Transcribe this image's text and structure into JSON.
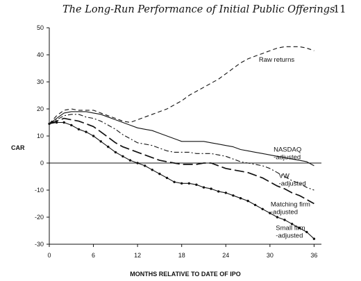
{
  "header": {
    "running_title": "The Long-Run Performance of Initial Public Offerings",
    "page_number": "11"
  },
  "chart_data": {
    "type": "line",
    "xlabel": "MONTHS RELATIVE TO DATE OF IPO",
    "ylabel": "CAR",
    "xlim": [
      0,
      37
    ],
    "ylim": [
      -30,
      50
    ],
    "x_ticks": [
      0,
      6,
      12,
      18,
      24,
      30,
      36
    ],
    "y_ticks": [
      50,
      40,
      30,
      20,
      10,
      0,
      -10,
      -20,
      -30
    ],
    "x_tick_labels": [
      "0",
      "6",
      "12",
      "18",
      "24",
      "30",
      "36"
    ],
    "y_tick_labels": [
      "50",
      "40",
      "30",
      "20",
      "10",
      "0",
      "-10",
      "-20",
      "-30"
    ],
    "zero_line": true,
    "series": [
      {
        "label_lines": [
          "Raw returns"
        ],
        "style": "dashed",
        "x": [
          0,
          1,
          2,
          3,
          4,
          5,
          6,
          7,
          8,
          9,
          10,
          11,
          12,
          13,
          14,
          15,
          16,
          17,
          18,
          19,
          20,
          21,
          22,
          23,
          24,
          25,
          26,
          27,
          28,
          29,
          30,
          31,
          32,
          33,
          34,
          35,
          36
        ],
        "y": [
          14.5,
          17.5,
          19.5,
          20,
          19.5,
          19.5,
          19.5,
          18.5,
          17.5,
          16.5,
          15.5,
          15,
          16,
          17,
          18,
          19,
          20,
          21.5,
          23,
          25,
          26.5,
          28,
          29.5,
          31,
          33,
          35,
          37,
          38.5,
          39.5,
          40.5,
          41.5,
          42.5,
          43,
          43,
          43,
          42.5,
          41.5
        ]
      },
      {
        "label_lines": [
          "NASDAQ",
          "-adjusted"
        ],
        "style": "solid",
        "x": [
          0,
          1,
          2,
          3,
          4,
          5,
          6,
          7,
          8,
          9,
          10,
          11,
          12,
          13,
          14,
          15,
          16,
          17,
          18,
          19,
          20,
          21,
          22,
          23,
          24,
          25,
          26,
          27,
          28,
          29,
          30,
          31,
          32,
          33,
          34,
          35,
          36
        ],
        "y": [
          14.5,
          16.5,
          18.5,
          19,
          19,
          19,
          18.5,
          18,
          17,
          16,
          15,
          14,
          13,
          12.5,
          12,
          11,
          10,
          9,
          8,
          8,
          8,
          8,
          7.5,
          7,
          6.5,
          6,
          5,
          4.5,
          4,
          3.5,
          3,
          2.5,
          2,
          1.5,
          1,
          0.5,
          -1
        ]
      },
      {
        "label_lines": [
          "VW",
          "-adjusted"
        ],
        "style": "dashdot",
        "x": [
          0,
          1,
          2,
          3,
          4,
          5,
          6,
          7,
          8,
          9,
          10,
          11,
          12,
          13,
          14,
          15,
          16,
          17,
          18,
          19,
          20,
          21,
          22,
          23,
          24,
          25,
          26,
          27,
          28,
          29,
          30,
          31,
          32,
          33,
          34,
          35,
          36
        ],
        "y": [
          14.5,
          16,
          17.5,
          18,
          18,
          17,
          16.5,
          15.5,
          14,
          12.5,
          10.5,
          9,
          7.5,
          7,
          6.5,
          5.5,
          4.5,
          4,
          4,
          4,
          3.5,
          3.5,
          3.5,
          3,
          2.5,
          1.5,
          0.5,
          0,
          -0.5,
          -1,
          -2,
          -3.5,
          -5,
          -6.5,
          -7.5,
          -9,
          -10
        ]
      },
      {
        "label_lines": [
          "Matching firm",
          "-adjusted"
        ],
        "style": "longdash",
        "x": [
          0,
          1,
          2,
          3,
          4,
          5,
          6,
          7,
          8,
          9,
          10,
          11,
          12,
          13,
          14,
          15,
          16,
          17,
          18,
          19,
          20,
          21,
          22,
          23,
          24,
          25,
          26,
          27,
          28,
          29,
          30,
          31,
          32,
          33,
          34,
          35,
          36
        ],
        "y": [
          14.5,
          15.5,
          16.5,
          16,
          15.5,
          14.5,
          13.5,
          11.5,
          9.5,
          7.5,
          6,
          5,
          4,
          3,
          2,
          1,
          0.5,
          0,
          -0.5,
          -0.5,
          -0.5,
          0,
          0,
          -1,
          -2,
          -2.5,
          -3,
          -3.5,
          -4.5,
          -5.5,
          -7,
          -8.5,
          -9.5,
          -11,
          -12,
          -13.5,
          -15
        ]
      },
      {
        "label_lines": [
          "Small firm",
          "-adjusted"
        ],
        "style": "dotted-markers",
        "x": [
          0,
          1,
          2,
          3,
          4,
          5,
          6,
          7,
          8,
          9,
          10,
          11,
          12,
          13,
          14,
          15,
          16,
          17,
          18,
          19,
          20,
          21,
          22,
          23,
          24,
          25,
          26,
          27,
          28,
          29,
          30,
          31,
          32,
          33,
          34,
          35,
          36
        ],
        "y": [
          14.5,
          15,
          15,
          14,
          12.5,
          11.5,
          10,
          8,
          6,
          4,
          2.5,
          1,
          0,
          -1,
          -2.5,
          -4,
          -5.5,
          -7,
          -7.5,
          -7.5,
          -8,
          -9,
          -9.5,
          -10.5,
          -11,
          -12,
          -13,
          -14,
          -15.5,
          -17,
          -18.5,
          -20,
          -21,
          -22.5,
          -24,
          -25.5,
          -28
        ]
      }
    ]
  }
}
